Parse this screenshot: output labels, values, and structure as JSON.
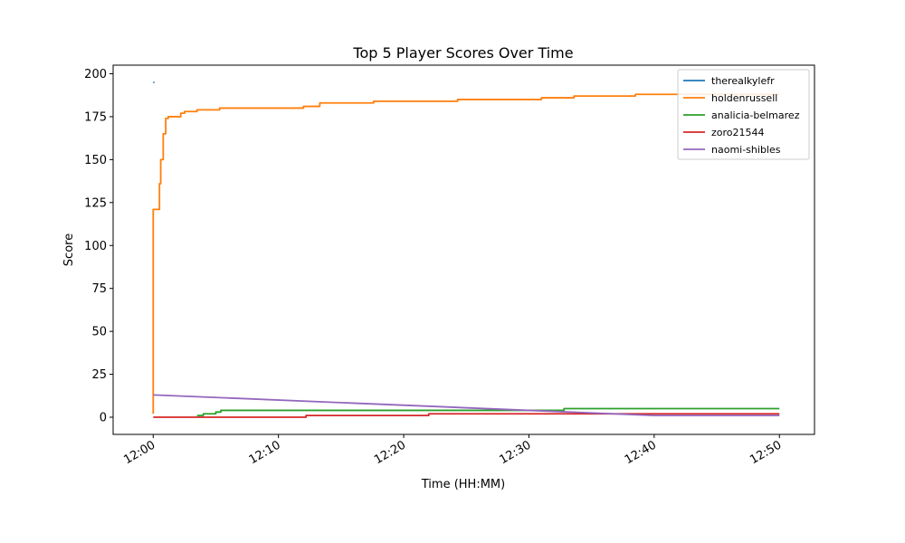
{
  "chart_data": {
    "type": "line",
    "title": "Top 5 Player Scores Over Time",
    "xlabel": "Time (HH:MM)",
    "ylabel": "Score",
    "xlim": [
      "11:56.8",
      "12:52.8"
    ],
    "ylim": [
      -10,
      205
    ],
    "xticks": [
      "12:00",
      "12:10",
      "12:20",
      "12:30",
      "12:40",
      "12:50"
    ],
    "yticks": [
      0,
      25,
      50,
      75,
      100,
      125,
      150,
      175,
      200
    ],
    "grid": false,
    "legend_position": "top-right",
    "series": [
      {
        "name": "therealkylefr",
        "color": "#1f77b4",
        "x": [
          "12:00",
          "12:00.1"
        ],
        "y": [
          195,
          195
        ]
      },
      {
        "name": "holdenrussell",
        "color": "#ff7f0e",
        "x": [
          "12:00",
          "12:00",
          "12:00.2",
          "12:00.5",
          "12:00.6",
          "12:00.8",
          "12:01.0",
          "12:01.2",
          "12:02.2",
          "12:02.5",
          "12:03.5",
          "12:05.3",
          "12:12.0",
          "12:13.3",
          "12:17.6",
          "12:24.3",
          "12:31.0",
          "12:33.6",
          "12:38.5",
          "12:41.0",
          "12:50"
        ],
        "y": [
          2,
          121,
          121,
          136,
          150,
          165,
          174,
          175,
          177,
          178,
          179,
          180,
          181,
          183,
          184,
          185,
          186,
          187,
          188,
          188,
          188
        ]
      },
      {
        "name": "analicia-belmarez",
        "color": "#2ca02c",
        "x": [
          "12:03.5",
          "12:04.0",
          "12:05.0",
          "12:05.4",
          "12:22.0",
          "12:32.8",
          "12:50"
        ],
        "y": [
          1,
          2,
          3,
          4,
          4,
          5,
          5
        ]
      },
      {
        "name": "zoro21544",
        "color": "#d62728",
        "x": [
          "12:00",
          "12:12.2",
          "12:22.0",
          "12:50"
        ],
        "y": [
          0,
          1,
          2,
          2
        ]
      },
      {
        "name": "naomi-shibles",
        "color": "#9467bd",
        "x": [
          "12:00",
          "12:40",
          "12:50"
        ],
        "y": [
          13,
          1,
          1
        ]
      }
    ]
  }
}
